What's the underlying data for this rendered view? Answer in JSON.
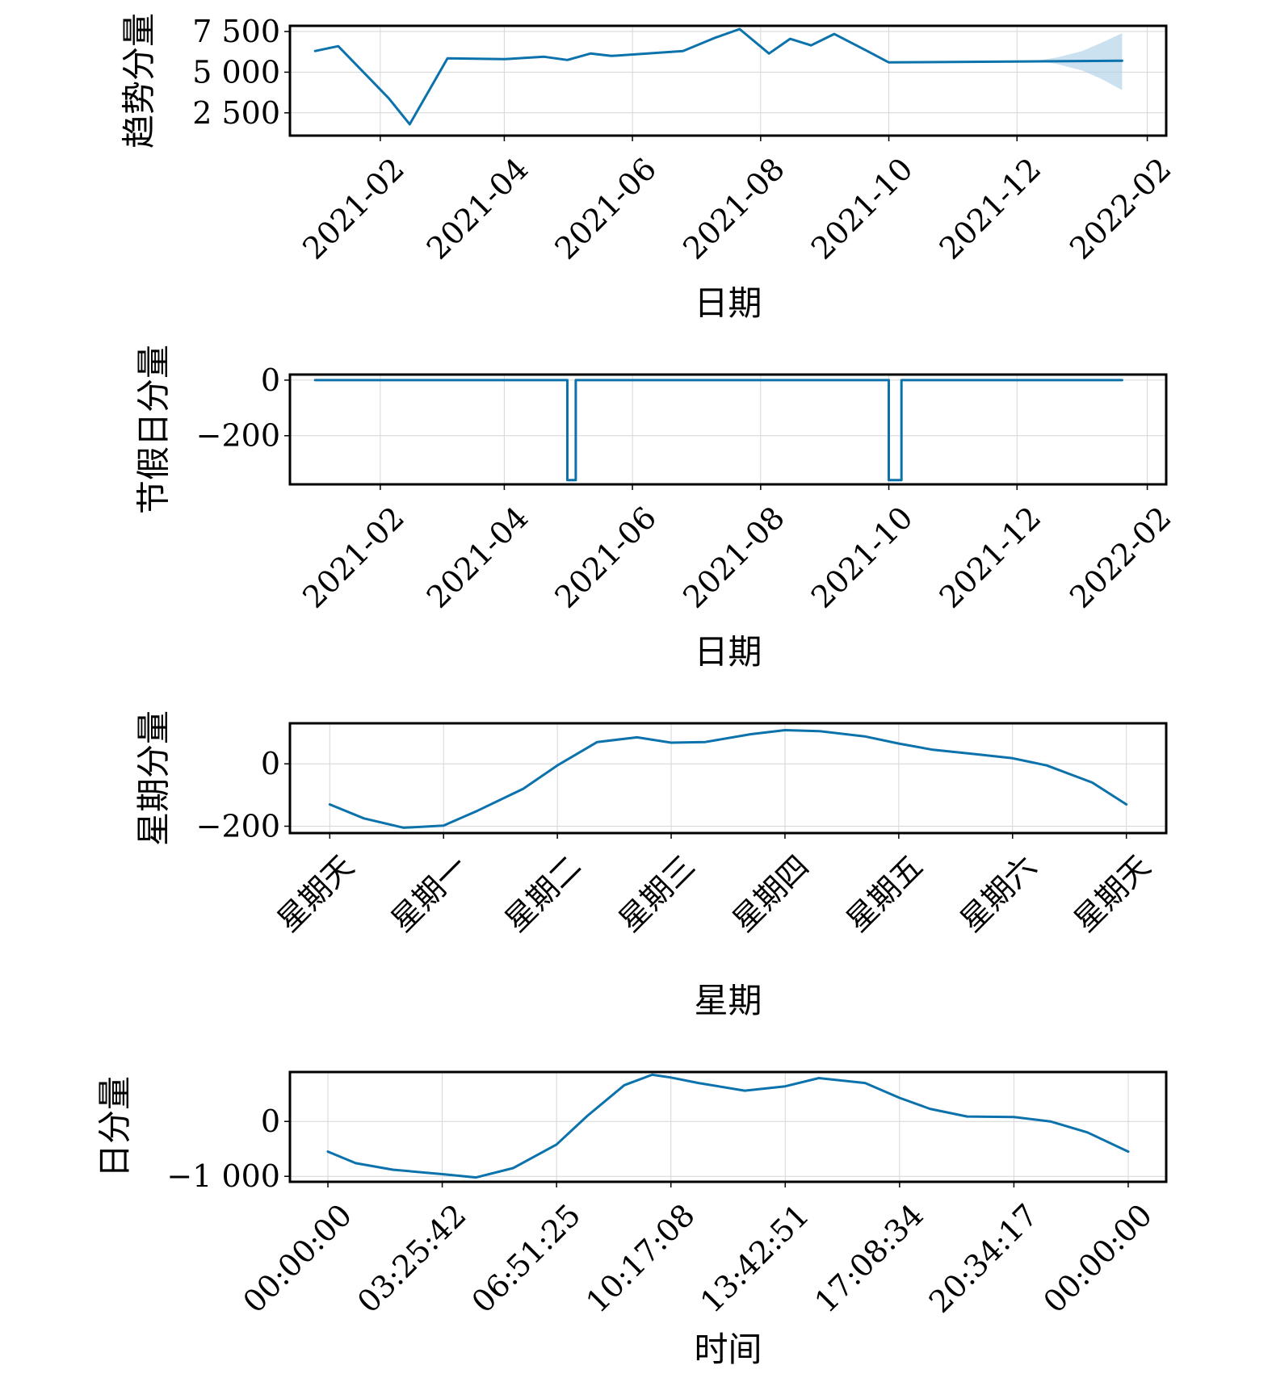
{
  "colors": {
    "series": "#0b72ac",
    "band": "#a9cde6"
  },
  "chart_data": [
    {
      "type": "line",
      "title": "",
      "xlabel": "日期",
      "ylabel": "趋势分量",
      "x_tick_labels": [
        "2021-02",
        "2021-04",
        "2021-06",
        "2021-08",
        "2021-10",
        "2021-12",
        "2022-02"
      ],
      "x_tick_values": [
        "2021-02-01",
        "2021-04-01",
        "2021-06-01",
        "2021-08-01",
        "2021-10-01",
        "2021-12-01",
        "2022-02-01"
      ],
      "xlim": [
        "2020-12-20",
        "2022-02-10"
      ],
      "y_tick_labels": [
        "2 500",
        "5 000",
        "7 500"
      ],
      "y_tick_values": [
        2500,
        5000,
        7500
      ],
      "ylim": [
        1100,
        7850
      ],
      "grid": true,
      "series": [
        {
          "x": [
            "2021-01-01",
            "2021-01-12",
            "2021-02-05",
            "2021-02-15",
            "2021-03-05",
            "2021-04-01",
            "2021-04-20",
            "2021-05-01",
            "2021-05-12",
            "2021-05-22",
            "2021-06-25",
            "2021-07-10",
            "2021-07-22",
            "2021-08-05",
            "2021-08-15",
            "2021-08-25",
            "2021-09-05",
            "2021-09-20",
            "2021-10-01",
            "2022-01-20"
          ],
          "y": [
            6300,
            6600,
            3400,
            1800,
            5850,
            5800,
            5950,
            5750,
            6150,
            6000,
            6300,
            7100,
            7650,
            6150,
            7050,
            6650,
            7350,
            6350,
            5600,
            5700
          ]
        }
      ],
      "uncertainty_band": {
        "x": [
          "2021-12-10",
          "2021-12-20",
          "2022-01-01",
          "2022-01-10",
          "2022-01-20"
        ],
        "lower": [
          5700,
          5500,
          5100,
          4600,
          3900
        ],
        "upper": [
          5700,
          5900,
          6300,
          6800,
          7400
        ]
      }
    },
    {
      "type": "line",
      "title": "",
      "xlabel": "日期",
      "ylabel": "节假日分量",
      "x_tick_labels": [
        "2021-02",
        "2021-04",
        "2021-06",
        "2021-08",
        "2021-10",
        "2021-12",
        "2022-02"
      ],
      "x_tick_values": [
        "2021-02-01",
        "2021-04-01",
        "2021-06-01",
        "2021-08-01",
        "2021-10-01",
        "2021-12-01",
        "2022-02-01"
      ],
      "xlim": [
        "2020-12-20",
        "2022-02-10"
      ],
      "y_tick_labels": [
        "−200",
        "0"
      ],
      "y_tick_values": [
        -200,
        0
      ],
      "ylim": [
        -375,
        20
      ],
      "grid": true,
      "series": [
        {
          "x": [
            "2021-01-01",
            "2021-05-01",
            "2021-05-01",
            "2021-05-05",
            "2021-05-05",
            "2021-10-01",
            "2021-10-01",
            "2021-10-07",
            "2021-10-07",
            "2022-01-20"
          ],
          "y": [
            0,
            0,
            -360,
            -360,
            0,
            0,
            -360,
            -360,
            0,
            0
          ]
        }
      ]
    },
    {
      "type": "line",
      "title": "",
      "xlabel": "星期",
      "ylabel": "星期分量",
      "x_tick_labels": [
        "星期天",
        "星期一",
        "星期二",
        "星期三",
        "星期四",
        "星期五",
        "星期六",
        "星期天"
      ],
      "x_tick_values": [
        0,
        1,
        2,
        3,
        4,
        5,
        6,
        7
      ],
      "xlim": [
        -0.35,
        7.35
      ],
      "y_tick_labels": [
        "−200",
        "0"
      ],
      "y_tick_values": [
        -200,
        0
      ],
      "ylim": [
        -222,
        130
      ],
      "grid": true,
      "series": [
        {
          "x": [
            0,
            0.3,
            0.65,
            1.0,
            1.3,
            1.7,
            2.0,
            2.35,
            2.7,
            3.0,
            3.3,
            3.7,
            4.0,
            4.3,
            4.7,
            5.0,
            5.3,
            5.7,
            6.0,
            6.3,
            6.7,
            7.0
          ],
          "y": [
            -130,
            -175,
            -205,
            -198,
            -150,
            -80,
            -5,
            70,
            85,
            68,
            70,
            95,
            108,
            105,
            88,
            65,
            45,
            30,
            18,
            -5,
            -60,
            -130
          ]
        }
      ]
    },
    {
      "type": "line",
      "title": "",
      "xlabel": "时间",
      "ylabel": "日分量",
      "x_tick_labels": [
        "00:00:00",
        "03:25:42",
        "06:51:25",
        "10:17:08",
        "13:42:51",
        "17:08:34",
        "20:34:17",
        "00:00:00"
      ],
      "x_tick_values": [
        0,
        12342,
        24685,
        37028,
        49371,
        61714,
        74057,
        86400
      ],
      "xlim": [
        -4100,
        90500
      ],
      "y_tick_labels": [
        "−1 000",
        "0"
      ],
      "y_tick_values": [
        -1000,
        0
      ],
      "ylim": [
        -1100,
        900
      ],
      "grid": true,
      "series": [
        {
          "x": [
            0,
            3000,
            7000,
            12342,
            16000,
            20000,
            24685,
            28000,
            32000,
            35000,
            37028,
            40000,
            45000,
            49371,
            53000,
            58000,
            61714,
            65000,
            69000,
            74057,
            78000,
            82000,
            86400
          ],
          "y": [
            -550,
            -760,
            -880,
            -960,
            -1020,
            -850,
            -420,
            100,
            660,
            850,
            800,
            700,
            560,
            640,
            790,
            700,
            430,
            230,
            90,
            80,
            0,
            -200,
            -550
          ]
        }
      ]
    }
  ]
}
